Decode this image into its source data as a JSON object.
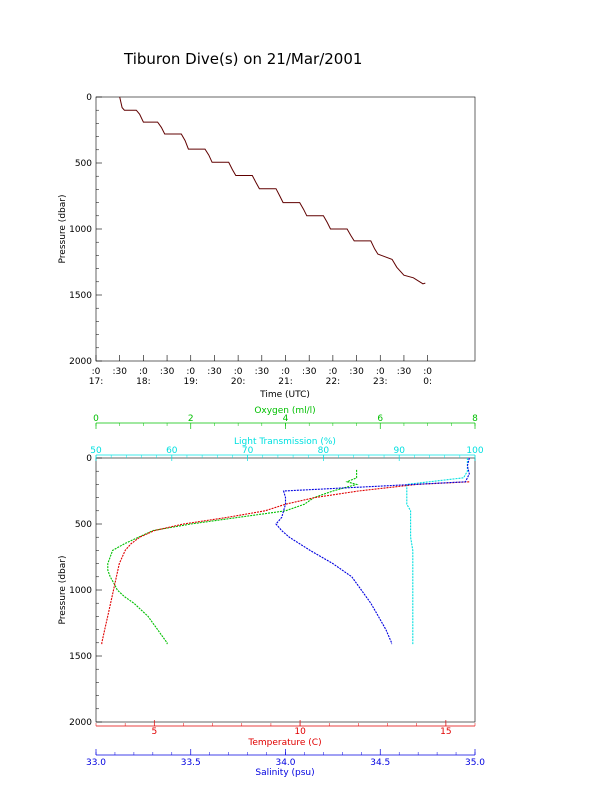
{
  "title": "Tiburon Dive(s) on 21/Mar/2001",
  "colors": {
    "oxygen": "#00c000",
    "transmission": "#00e0e0",
    "temperature": "#e00000",
    "salinity": "#0000e0",
    "axis": "#000000"
  },
  "chart_data": [
    {
      "type": "line",
      "xlabel": "Time (UTC)",
      "ylabel": "Pressure (dbar)",
      "xlim": [
        16.5,
        24.5
      ],
      "ylim": [
        2000,
        0
      ],
      "xticks": [
        {
          "t": 16.5,
          "top": ":0",
          "bottom": "17:"
        },
        {
          "t": 17.0,
          "top": ":30",
          "bottom": ""
        },
        {
          "t": 17.5,
          "top": ":0",
          "bottom": "18:"
        },
        {
          "t": 18.0,
          "top": ":30",
          "bottom": ""
        },
        {
          "t": 18.5,
          "top": ":0",
          "bottom": "19:"
        },
        {
          "t": 19.0,
          "top": ":30",
          "bottom": ""
        },
        {
          "t": 19.5,
          "top": ":0",
          "bottom": "20:"
        },
        {
          "t": 20.0,
          "top": ":30",
          "bottom": ""
        },
        {
          "t": 20.5,
          "top": ":0",
          "bottom": "21:"
        },
        {
          "t": 21.0,
          "top": ":30",
          "bottom": ""
        },
        {
          "t": 21.5,
          "top": ":0",
          "bottom": "22:"
        },
        {
          "t": 22.0,
          "top": ":30",
          "bottom": ""
        },
        {
          "t": 22.5,
          "top": ":0",
          "bottom": "23:"
        },
        {
          "t": 23.0,
          "top": ":30",
          "bottom": ""
        },
        {
          "t": 23.5,
          "top": ":0",
          "bottom": "0:"
        }
      ],
      "yticks": [
        0,
        500,
        1000,
        1500,
        2000
      ],
      "series": [
        {
          "x": [
            17.0,
            17.05,
            17.1,
            17.35,
            17.42,
            17.5,
            17.8,
            17.88,
            17.95,
            18.3,
            18.38,
            18.45,
            18.8,
            18.88,
            18.95,
            19.3,
            19.38,
            19.45,
            19.8,
            19.88,
            19.95,
            20.3,
            20.38,
            20.45,
            20.8,
            20.88,
            20.95,
            21.3,
            21.38,
            21.45,
            21.8,
            21.88,
            21.95,
            22.3,
            22.38,
            22.45,
            22.75,
            22.85,
            23.0,
            23.2,
            23.4,
            23.45
          ],
          "y": [
            0,
            80,
            100,
            100,
            130,
            190,
            190,
            230,
            280,
            280,
            330,
            395,
            395,
            440,
            495,
            495,
            550,
            595,
            595,
            650,
            695,
            695,
            750,
            800,
            800,
            850,
            900,
            900,
            950,
            1000,
            1000,
            1050,
            1090,
            1090,
            1150,
            1190,
            1230,
            1290,
            1350,
            1370,
            1415,
            1410
          ]
        }
      ]
    },
    {
      "type": "line",
      "ylabel": "Pressure (dbar)",
      "ylim": [
        2000,
        0
      ],
      "yticks": [
        0,
        500,
        1000,
        1500,
        2000
      ],
      "axes": {
        "oxygen": {
          "label": "Oxygen (ml/l)",
          "range": [
            0,
            8
          ],
          "ticks": [
            0,
            2,
            4,
            6,
            8
          ]
        },
        "transmission": {
          "label": "Light Transmission (%)",
          "range": [
            50,
            100
          ],
          "ticks": [
            50,
            60,
            70,
            80,
            90,
            100
          ]
        },
        "temperature": {
          "label": "Temperature (C)",
          "range": [
            3,
            16
          ],
          "ticks": [
            5,
            10,
            15
          ]
        },
        "salinity": {
          "label": "Salinity (psu)",
          "range": [
            33.0,
            35.0
          ],
          "ticks": [
            "33.0",
            "33.5",
            "34.0",
            "34.5",
            "35.0"
          ]
        }
      },
      "series": [
        {
          "axis": "oxygen",
          "p": [
            90,
            150,
            180,
            200,
            250,
            300,
            350,
            400,
            450,
            500,
            550,
            600,
            650,
            700,
            750,
            800,
            850,
            900,
            950,
            1000,
            1050,
            1100,
            1150,
            1200,
            1250,
            1300,
            1350,
            1400,
            1410
          ],
          "v": [
            5.5,
            5.5,
            5.3,
            5.5,
            5.0,
            4.6,
            4.4,
            4.0,
            3.0,
            2.0,
            1.2,
            0.9,
            0.6,
            0.35,
            0.3,
            0.25,
            0.25,
            0.3,
            0.38,
            0.45,
            0.6,
            0.8,
            0.95,
            1.1,
            1.2,
            1.3,
            1.4,
            1.5,
            1.5
          ]
        },
        {
          "axis": "transmission",
          "p": [
            0,
            100,
            150,
            200,
            250,
            300,
            350,
            400,
            500,
            600,
            700,
            800,
            900,
            1000,
            1100,
            1200,
            1300,
            1400,
            1410
          ],
          "v": [
            99,
            99,
            98.5,
            91,
            91,
            91,
            91,
            91.5,
            91.5,
            91.5,
            91.8,
            91.8,
            91.8,
            91.8,
            91.8,
            91.8,
            91.8,
            91.8,
            91.8
          ]
        },
        {
          "axis": "temperature",
          "p": [
            180,
            200,
            250,
            300,
            350,
            400,
            450,
            500,
            550,
            600,
            650,
            700,
            800,
            900,
            1000,
            1100,
            1200,
            1300,
            1400,
            1410
          ],
          "v": [
            15.8,
            14.0,
            12.0,
            10.5,
            9.5,
            8.8,
            7.5,
            6.0,
            5.0,
            4.5,
            4.2,
            4.0,
            3.8,
            3.7,
            3.6,
            3.5,
            3.4,
            3.3,
            3.2,
            3.2
          ]
        },
        {
          "axis": "salinity",
          "p": [
            0,
            60,
            120,
            180,
            250,
            300,
            350,
            400,
            450,
            500,
            550,
            600,
            700,
            800,
            900,
            1000,
            1100,
            1200,
            1300,
            1400,
            1410
          ],
          "v": [
            34.97,
            34.96,
            34.97,
            34.95,
            33.99,
            34.0,
            34.0,
            33.99,
            33.98,
            33.95,
            33.98,
            34.02,
            34.13,
            34.25,
            34.35,
            34.4,
            34.45,
            34.49,
            34.53,
            34.56,
            34.56
          ]
        }
      ]
    }
  ]
}
